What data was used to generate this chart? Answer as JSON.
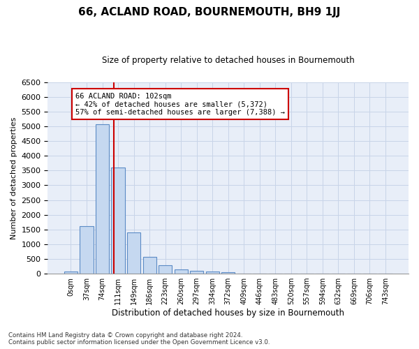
{
  "title": "66, ACLAND ROAD, BOURNEMOUTH, BH9 1JJ",
  "subtitle": "Size of property relative to detached houses in Bournemouth",
  "xlabel": "Distribution of detached houses by size in Bournemouth",
  "ylabel": "Number of detached properties",
  "footnote1": "Contains HM Land Registry data © Crown copyright and database right 2024.",
  "footnote2": "Contains public sector information licensed under the Open Government Licence v3.0.",
  "bar_labels": [
    "0sqm",
    "37sqm",
    "74sqm",
    "111sqm",
    "149sqm",
    "186sqm",
    "223sqm",
    "260sqm",
    "297sqm",
    "334sqm",
    "372sqm",
    "409sqm",
    "446sqm",
    "483sqm",
    "520sqm",
    "557sqm",
    "594sqm",
    "632sqm",
    "669sqm",
    "706sqm",
    "743sqm"
  ],
  "bar_values": [
    75,
    1625,
    5075,
    3600,
    1400,
    580,
    285,
    140,
    100,
    75,
    50,
    0,
    0,
    0,
    0,
    0,
    0,
    0,
    0,
    0,
    0
  ],
  "bar_color": "#c5d8f0",
  "bar_edge_color": "#5b8bc5",
  "grid_color": "#c8d4e8",
  "background_color": "#e8eef8",
  "vline_x": 2.75,
  "vline_color": "#cc0000",
  "annotation_line1": "66 ACLAND ROAD: 102sqm",
  "annotation_line2": "← 42% of detached houses are smaller (5,372)",
  "annotation_line3": "57% of semi-detached houses are larger (7,388) →",
  "annotation_box_color": "#cc0000",
  "ylim": [
    0,
    6500
  ],
  "yticks": [
    0,
    500,
    1000,
    1500,
    2000,
    2500,
    3000,
    3500,
    4000,
    4500,
    5000,
    5500,
    6000,
    6500
  ]
}
